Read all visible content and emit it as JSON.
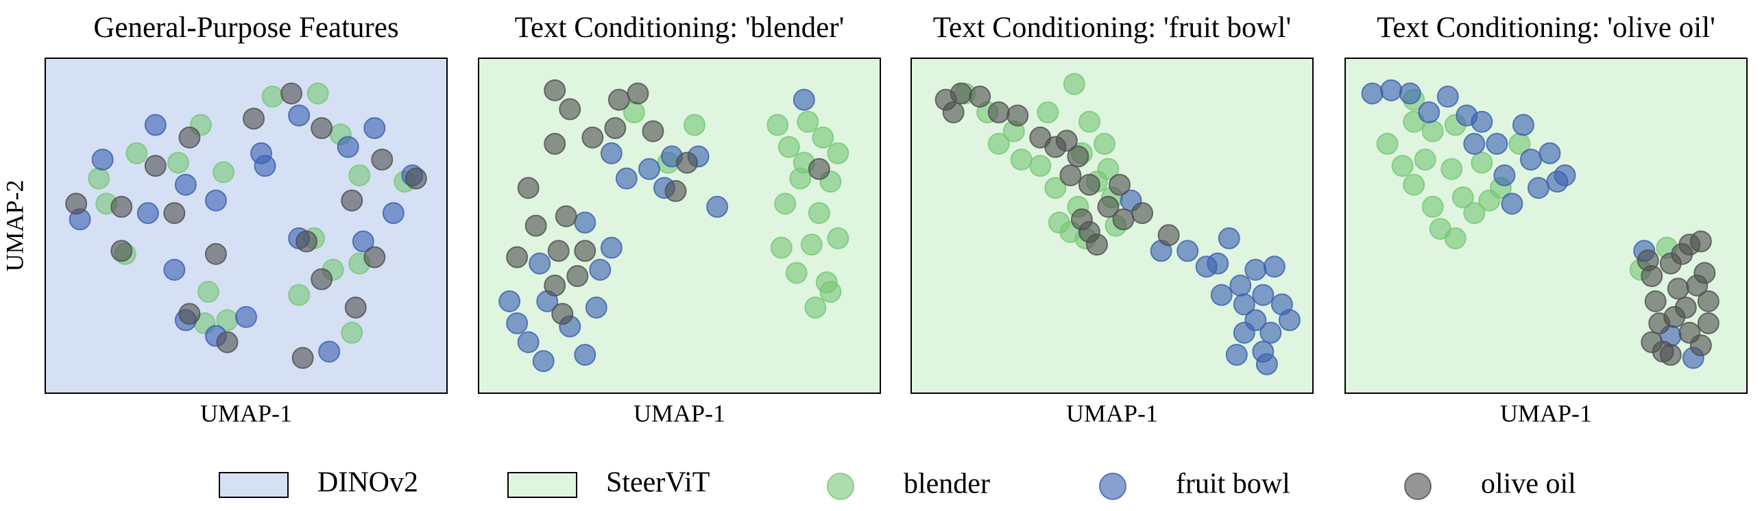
{
  "chart_data": [
    {
      "type": "scatter",
      "title": "General-Purpose Features",
      "xlabel": "UMAP-1",
      "ylabel": "UMAP-2",
      "background": "#d6e0f4",
      "xlim": [
        0,
        10
      ],
      "ylim": [
        0,
        10
      ],
      "series": [
        {
          "name": "blender",
          "color": "#77c777",
          "x": [
            1.1,
            2.1,
            3.8,
            5.7,
            6.9,
            7.5,
            8.0,
            9.2,
            6.8,
            7.3,
            8.0,
            6.4,
            7.8,
            4.0,
            3.9,
            4.5,
            1.8,
            3.2,
            4.4,
            1.3
          ],
          "values": [
            6.5,
            7.3,
            8.2,
            9.1,
            9.2,
            7.9,
            6.6,
            6.4,
            4.6,
            3.6,
            3.8,
            2.8,
            1.6,
            2.9,
            1.9,
            2.0,
            4.1,
            7.0,
            6.7,
            5.7
          ]
        },
        {
          "name": "fruit bowl",
          "color": "#3a5fb2",
          "x": [
            0.6,
            1.2,
            2.6,
            3.4,
            5.4,
            5.5,
            6.4,
            7.7,
            8.4,
            9.4,
            8.9,
            8.1,
            6.4,
            3.1,
            3.4,
            4.2,
            5.0,
            7.2,
            2.4,
            4.2
          ],
          "values": [
            5.2,
            7.1,
            8.2,
            6.3,
            7.3,
            6.9,
            8.5,
            7.5,
            8.1,
            6.6,
            5.4,
            4.5,
            4.6,
            3.6,
            2.0,
            1.5,
            2.1,
            1.0,
            5.4,
            5.8
          ]
        },
        {
          "name": "olive oil",
          "color": "#4f4f4f",
          "x": [
            0.5,
            1.7,
            3.5,
            5.2,
            6.2,
            7.0,
            8.6,
            9.5,
            8.4,
            7.8,
            6.6,
            7.0,
            6.5,
            3.5,
            4.5,
            4.2,
            1.7,
            2.6,
            7.9,
            3.1
          ],
          "values": [
            5.7,
            5.6,
            7.8,
            8.4,
            9.2,
            8.1,
            7.1,
            6.5,
            4.0,
            5.8,
            4.5,
            3.3,
            0.8,
            2.2,
            1.3,
            4.1,
            4.2,
            6.9,
            2.4,
            5.4
          ]
        }
      ]
    },
    {
      "type": "scatter",
      "title": "Text Conditioning: 'blender'",
      "xlabel": "UMAP-1",
      "background": "#dff5df",
      "xlim": [
        0,
        10
      ],
      "ylim": [
        0,
        10
      ],
      "series": [
        {
          "name": "blender",
          "color": "#77c777",
          "x": [
            7.6,
            8.4,
            9.2,
            9.0,
            8.2,
            7.8,
            8.7,
            9.2,
            8.5,
            7.7,
            8.1,
            8.9,
            8.6,
            9.0,
            7.9,
            8.3,
            8.8,
            5.4,
            3.8,
            4.7
          ],
          "values": [
            8.2,
            8.3,
            7.3,
            6.4,
            6.5,
            5.7,
            5.4,
            4.6,
            4.4,
            4.3,
            3.5,
            3.2,
            2.4,
            2.9,
            7.5,
            7.0,
            7.8,
            8.2,
            8.6,
            7.0
          ]
        },
        {
          "name": "fruit bowl",
          "color": "#3a5fb2",
          "x": [
            0.5,
            1.0,
            1.4,
            2.1,
            2.5,
            1.5,
            2.8,
            2.9,
            3.2,
            1.3,
            0.7,
            3.6,
            4.2,
            4.6,
            4.8,
            3.2,
            2.5,
            5.5,
            6.0,
            8.3
          ],
          "values": [
            2.6,
            1.3,
            0.7,
            1.8,
            0.9,
            2.6,
            2.4,
            3.6,
            4.3,
            3.8,
            1.9,
            6.5,
            6.8,
            6.2,
            7.2,
            7.3,
            5.1,
            7.2,
            5.6,
            9.0
          ]
        },
        {
          "name": "olive oil",
          "color": "#4f4f4f",
          "x": [
            1.7,
            2.1,
            1.7,
            2.7,
            3.4,
            3.3,
            4.3,
            3.9,
            5.2,
            4.9,
            1.0,
            1.2,
            0.7,
            1.8,
            2.5,
            2.0,
            1.9,
            1.7,
            2.3,
            8.7
          ],
          "values": [
            9.3,
            8.7,
            7.6,
            7.8,
            9.0,
            8.1,
            8.0,
            9.2,
            7.0,
            6.1,
            6.2,
            5.0,
            4.0,
            4.2,
            4.2,
            5.3,
            2.2,
            3.1,
            3.4,
            6.8
          ]
        }
      ]
    },
    {
      "type": "scatter",
      "title": "Text Conditioning: 'fruit bowl'",
      "xlabel": "UMAP-1",
      "background": "#dff5df",
      "xlim": [
        0,
        10
      ],
      "ylim": [
        0,
        10
      ],
      "series": [
        {
          "name": "blender",
          "color": "#77c777",
          "x": [
            1.1,
            1.7,
            2.0,
            2.6,
            3.1,
            3.5,
            3.3,
            4.0,
            4.4,
            4.2,
            4.8,
            4.6,
            5.0,
            3.6,
            4.1,
            4.3,
            5.1,
            2.4,
            3.9,
            4.9
          ],
          "values": [
            9.2,
            8.6,
            7.6,
            7.1,
            6.9,
            6.2,
            8.6,
            9.5,
            8.3,
            7.3,
            7.6,
            6.4,
            5.9,
            5.1,
            5.6,
            4.6,
            5.0,
            8.0,
            4.8,
            6.8
          ]
        },
        {
          "name": "fruit bowl",
          "color": "#3a5fb2",
          "x": [
            5.5,
            6.3,
            7.0,
            7.8,
            8.1,
            8.8,
            9.3,
            8.4,
            9.0,
            9.5,
            8.8,
            9.2,
            8.5,
            8.3,
            9.1,
            8.5,
            7.5,
            9.7,
            7.9,
            9.0
          ],
          "values": [
            5.8,
            4.2,
            4.2,
            3.8,
            4.6,
            3.6,
            3.7,
            3.1,
            2.8,
            2.5,
            2.0,
            1.6,
            1.6,
            0.9,
            0.6,
            2.5,
            3.7,
            2.0,
            2.8,
            1.0
          ]
        },
        {
          "name": "olive oil",
          "color": "#4f4f4f",
          "x": [
            0.6,
            0.8,
            1.0,
            1.5,
            2.0,
            2.5,
            3.1,
            3.8,
            3.5,
            4.1,
            4.4,
            5.2,
            4.9,
            4.2,
            3.9,
            5.3,
            4.4,
            4.6,
            6.5,
            5.8
          ],
          "values": [
            9.0,
            8.6,
            9.2,
            9.1,
            8.6,
            8.5,
            7.8,
            7.7,
            7.5,
            7.2,
            6.3,
            6.3,
            5.6,
            5.2,
            6.6,
            5.2,
            4.8,
            4.4,
            4.7,
            5.4
          ]
        }
      ]
    },
    {
      "type": "scatter",
      "title": "Text Conditioning: 'olive oil'",
      "xlabel": "UMAP-1",
      "background": "#dff5df",
      "xlim": [
        0,
        10
      ],
      "ylim": [
        0,
        10
      ],
      "series": [
        {
          "name": "blender",
          "color": "#77c777",
          "x": [
            0.8,
            1.5,
            1.2,
            1.8,
            1.5,
            2.0,
            2.5,
            2.8,
            2.2,
            3.3,
            3.1,
            2.0,
            3.8,
            2.6,
            3.5,
            1.5,
            2.6,
            4.3,
            7.5,
            8.2
          ],
          "values": [
            7.6,
            8.3,
            6.9,
            7.1,
            6.3,
            5.6,
            6.8,
            5.9,
            4.9,
            7.0,
            5.4,
            8.0,
            6.2,
            4.6,
            5.8,
            9.0,
            8.2,
            7.6,
            3.6,
            4.3
          ]
        },
        {
          "name": "fruit bowl",
          "color": "#3a5fb2",
          "x": [
            0.4,
            0.9,
            1.4,
            1.9,
            2.4,
            2.9,
            3.3,
            3.7,
            4.4,
            4.6,
            5.1,
            5.3,
            4.8,
            4.1,
            3.9,
            5.5,
            3.1,
            7.6,
            8.9,
            8.3
          ],
          "values": [
            9.2,
            9.3,
            9.2,
            8.6,
            9.1,
            8.5,
            8.3,
            7.6,
            8.2,
            7.1,
            7.3,
            6.4,
            6.2,
            5.7,
            6.6,
            6.6,
            7.6,
            4.2,
            0.8,
            1.5
          ]
        },
        {
          "name": "olive oil",
          "color": "#4f4f4f",
          "x": [
            7.8,
            8.3,
            8.8,
            9.1,
            9.2,
            8.5,
            7.9,
            8.7,
            9.3,
            8.0,
            8.8,
            9.1,
            8.3,
            7.8,
            9.0,
            8.4,
            7.7,
            8.6,
            9.3,
            8.1
          ],
          "values": [
            3.4,
            3.8,
            4.4,
            4.5,
            3.5,
            3.0,
            2.6,
            2.4,
            2.6,
            1.9,
            1.6,
            1.2,
            0.9,
            1.3,
            3.1,
            2.1,
            3.9,
            4.1,
            1.9,
            1.0
          ]
        }
      ]
    }
  ],
  "legend": [
    {
      "label": "DINOv2",
      "color": "#d6e0f4"
    },
    {
      "label": "SteerViT",
      "color": "#dff5df"
    }
  ]
}
